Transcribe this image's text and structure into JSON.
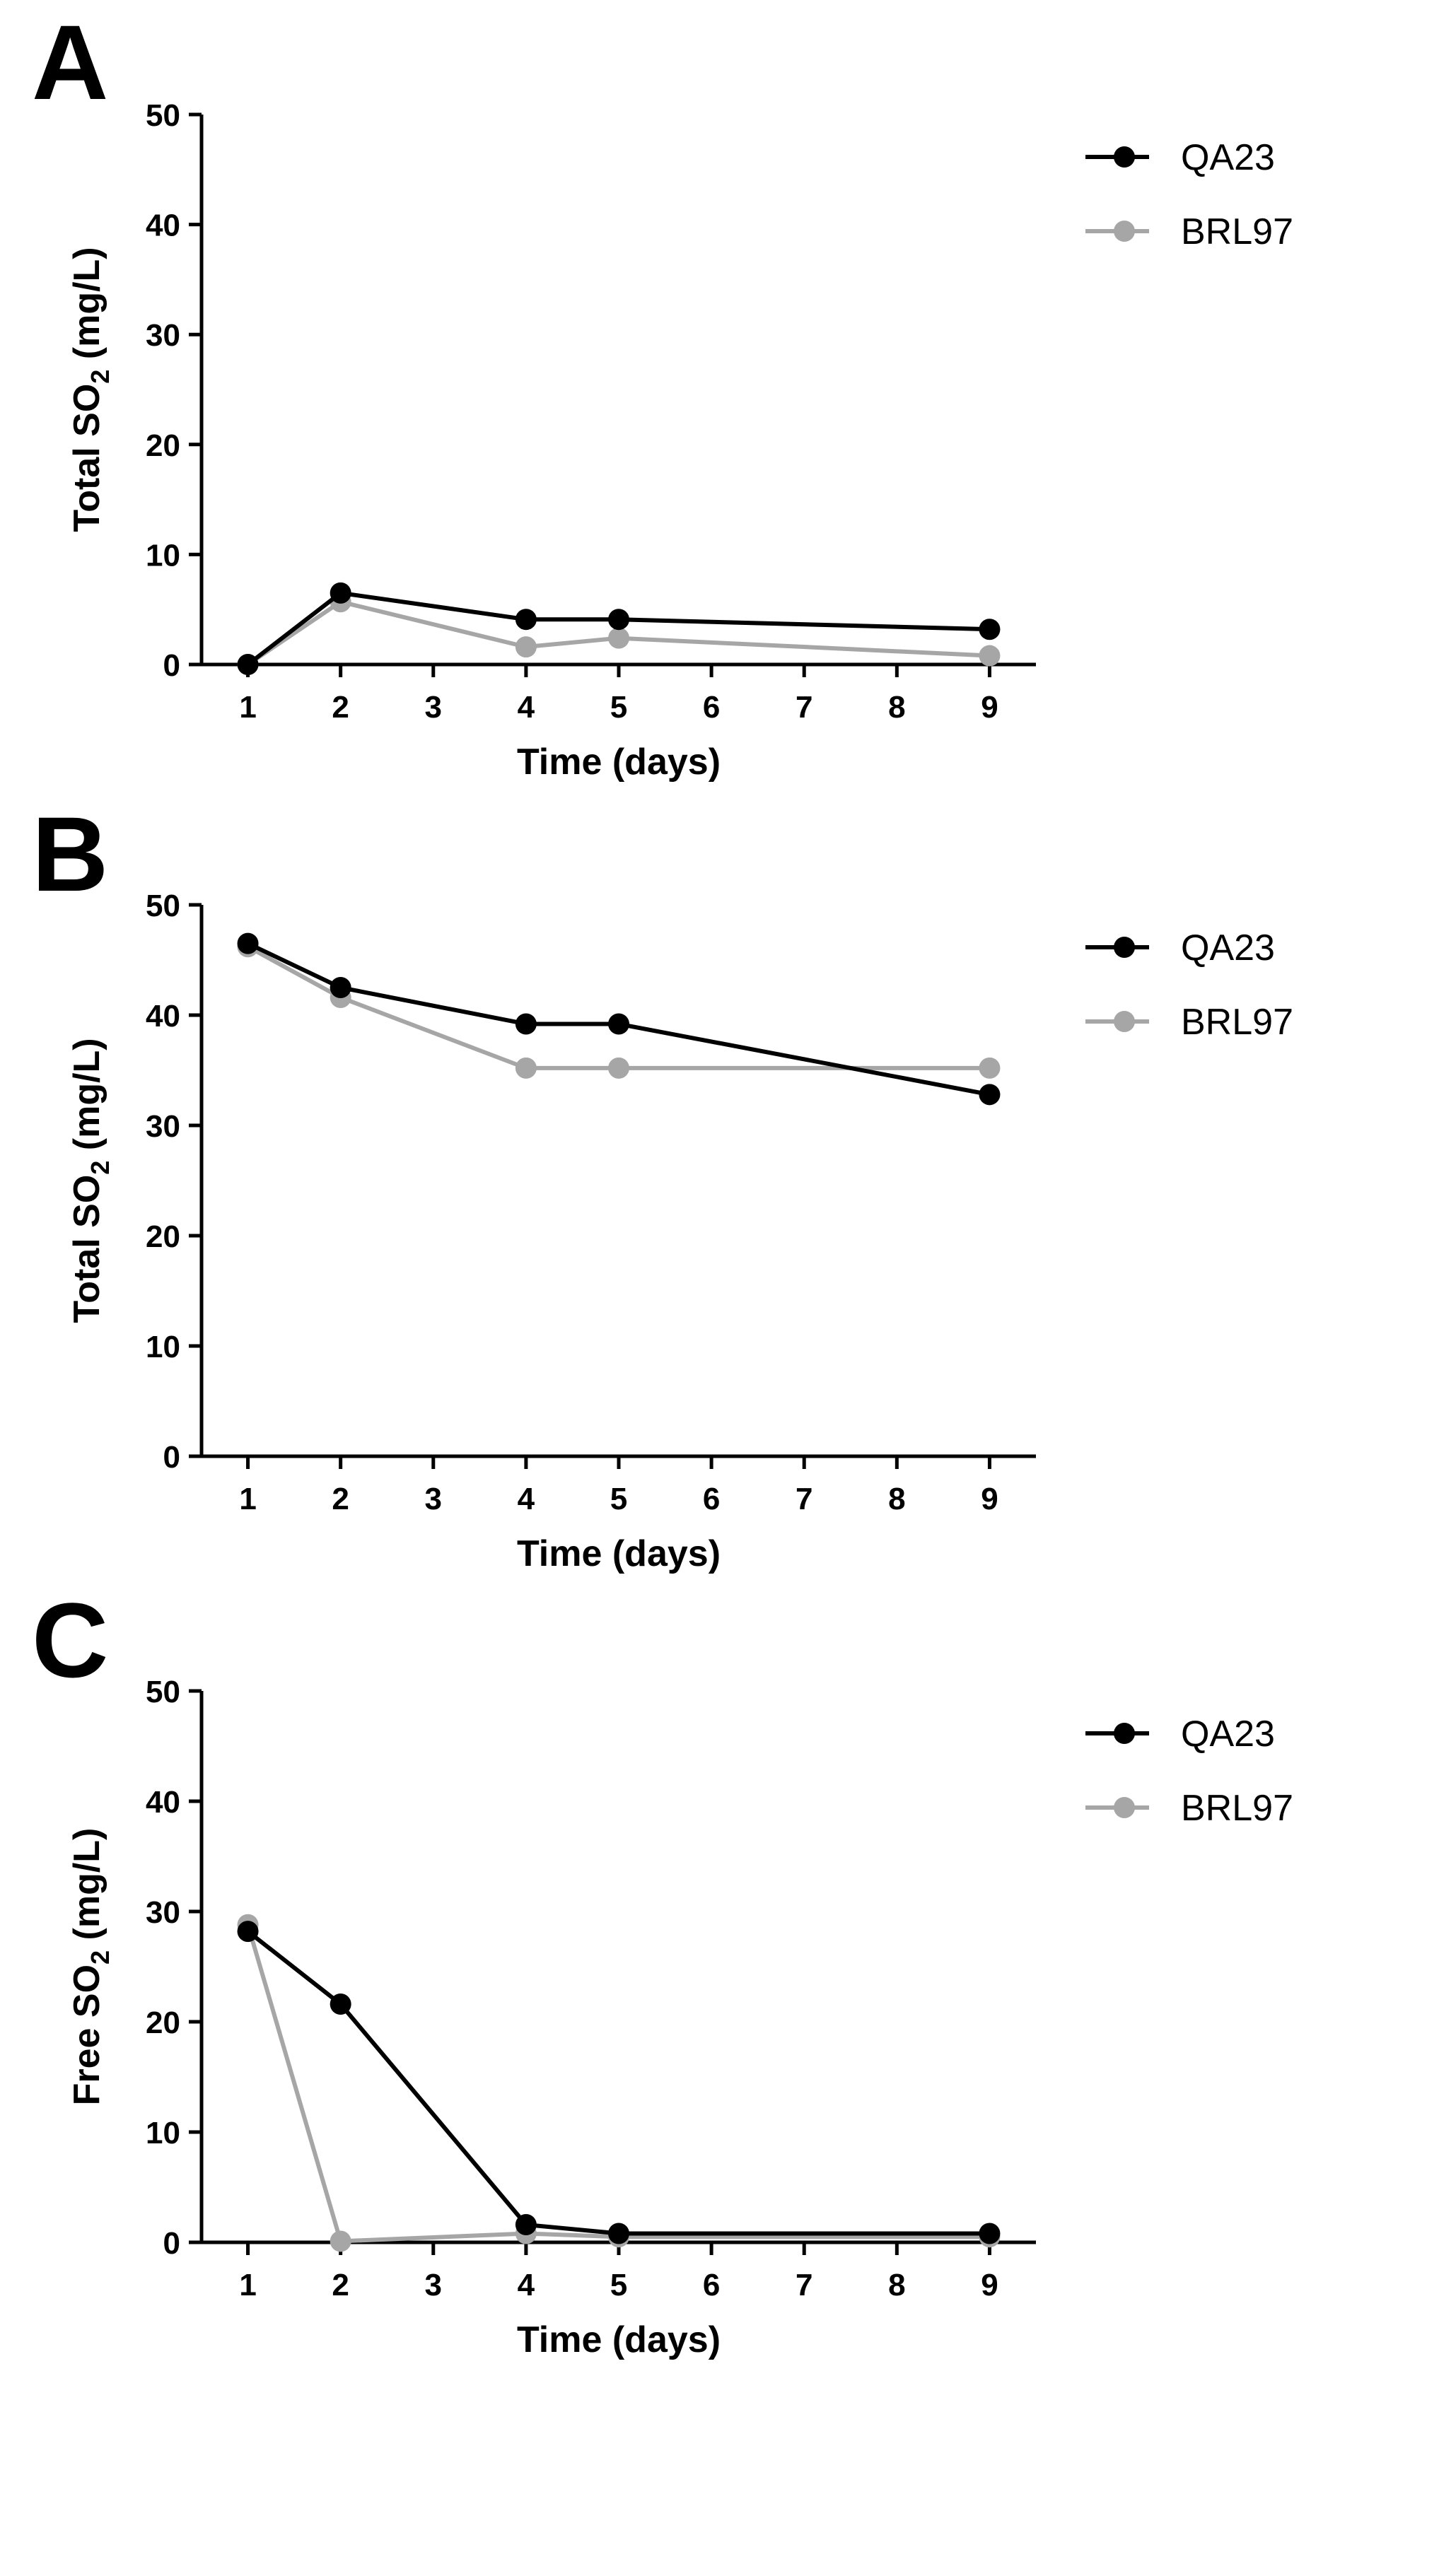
{
  "chart_data": [
    {
      "panel": "A",
      "type": "line",
      "x": [
        1,
        2,
        4,
        5,
        9
      ],
      "series": [
        {
          "name": "QA23",
          "color": "#000000",
          "values": [
            0,
            6.5,
            4.1,
            4.1,
            3.2
          ]
        },
        {
          "name": "BRL97",
          "color": "#a6a6a6",
          "values": [
            0,
            5.7,
            1.6,
            2.4,
            0.8
          ]
        }
      ],
      "xlabel": "Time (days)",
      "ylabel": {
        "prefix": "Total SO",
        "sub": "2",
        "suffix": " (mg/L)"
      },
      "xlim": [
        0.5,
        9.5
      ],
      "ylim": [
        0,
        50
      ],
      "xticks": [
        1,
        2,
        3,
        4,
        5,
        6,
        7,
        8,
        9
      ],
      "yticks": [
        0,
        10,
        20,
        30,
        40,
        50
      ],
      "legend": "top-right",
      "grid": false
    },
    {
      "panel": "B",
      "type": "line",
      "x": [
        1,
        2,
        4,
        5,
        9
      ],
      "series": [
        {
          "name": "QA23",
          "color": "#000000",
          "values": [
            46.5,
            42.5,
            39.2,
            39.2,
            32.8
          ]
        },
        {
          "name": "BRL97",
          "color": "#a6a6a6",
          "values": [
            46.2,
            41.6,
            35.2,
            35.2,
            35.2
          ]
        }
      ],
      "xlabel": "Time (days)",
      "ylabel": {
        "prefix": "Total SO",
        "sub": "2",
        "suffix": " (mg/L)"
      },
      "xlim": [
        0.5,
        9.5
      ],
      "ylim": [
        0,
        50
      ],
      "xticks": [
        1,
        2,
        3,
        4,
        5,
        6,
        7,
        8,
        9
      ],
      "yticks": [
        0,
        10,
        20,
        30,
        40,
        50
      ],
      "legend": "top-right",
      "grid": false
    },
    {
      "panel": "C",
      "type": "line",
      "x": [
        1,
        2,
        4,
        5,
        9
      ],
      "series": [
        {
          "name": "QA23",
          "color": "#000000",
          "values": [
            28.2,
            21.6,
            1.6,
            0.8,
            0.8
          ]
        },
        {
          "name": "BRL97",
          "color": "#a6a6a6",
          "values": [
            28.8,
            0.1,
            0.8,
            0.5,
            0.5
          ]
        }
      ],
      "xlabel": "Time (days)",
      "ylabel": {
        "prefix": "Free SO",
        "sub": "2",
        "suffix": " (mg/L)"
      },
      "xlim": [
        0.5,
        9.5
      ],
      "ylim": [
        0,
        50
      ],
      "xticks": [
        1,
        2,
        3,
        4,
        5,
        6,
        7,
        8,
        9
      ],
      "yticks": [
        0,
        10,
        20,
        30,
        40,
        50
      ],
      "legend": "top-right",
      "grid": false
    }
  ]
}
